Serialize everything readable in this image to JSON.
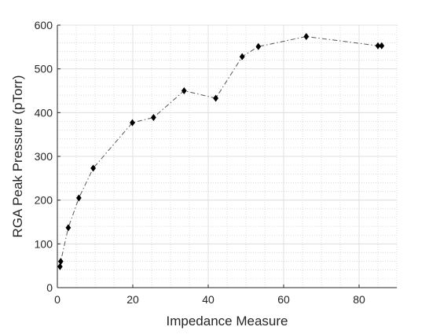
{
  "chart_data": {
    "type": "scatter",
    "title": "",
    "xlabel": "Impedance Measure",
    "ylabel": "RGA Peak Pressure (pTorr)",
    "xlim": [
      0,
      90
    ],
    "ylim": [
      0,
      600
    ],
    "xticks": [
      0,
      20,
      40,
      60,
      80
    ],
    "yticks": [
      0,
      100,
      200,
      300,
      400,
      500,
      600
    ],
    "grid": true,
    "minor_grid": true,
    "legend": "none",
    "series": [
      {
        "marker": "diamond",
        "line_style": "dash-dot",
        "marker_color": "#000000",
        "line_color": "#555555",
        "x": [
          0.7,
          0.9,
          2.9,
          5.7,
          9.5,
          19.9,
          25.5,
          33.6,
          42.0,
          49.0,
          53.3,
          66.0,
          85.0,
          86.0
        ],
        "y": [
          48,
          60,
          137,
          205,
          273,
          377,
          389,
          450,
          433,
          528,
          551,
          574,
          553,
          553
        ]
      }
    ]
  }
}
